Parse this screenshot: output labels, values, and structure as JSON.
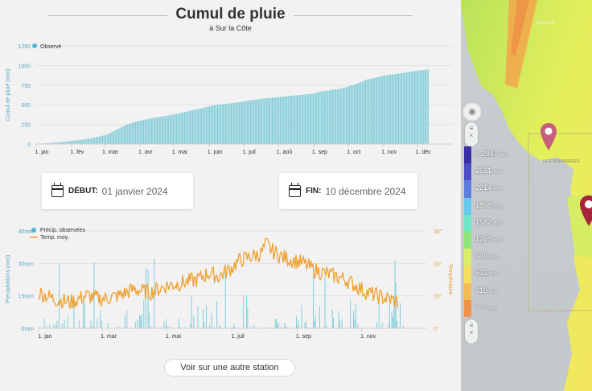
{
  "header": {
    "title": "Cumul de pluie",
    "subtitle": "à Sur la Côte"
  },
  "cumul_chart": {
    "type": "bar",
    "legend": "Observé",
    "ylabel": "Cumul de pluie (mm)",
    "yticks": [
      "0",
      "250",
      "500",
      "750",
      "1000",
      "1250"
    ],
    "xticks": [
      "1. jan",
      "1. fév",
      "1. mar",
      "1. avr",
      "1. mai",
      "1. juin",
      "1. juil",
      "1. aoû",
      "1. sep",
      "1. oct",
      "1. nov",
      "1. déc"
    ],
    "ylim": [
      0,
      1250
    ],
    "color": "#7ccbd8",
    "anchors_day_value": [
      [
        0,
        0
      ],
      [
        10,
        10
      ],
      [
        25,
        30
      ],
      [
        40,
        55
      ],
      [
        50,
        80
      ],
      [
        62,
        120
      ],
      [
        70,
        180
      ],
      [
        78,
        240
      ],
      [
        86,
        280
      ],
      [
        98,
        320
      ],
      [
        110,
        350
      ],
      [
        122,
        380
      ],
      [
        134,
        420
      ],
      [
        146,
        460
      ],
      [
        158,
        500
      ],
      [
        166,
        510
      ],
      [
        176,
        530
      ],
      [
        190,
        560
      ],
      [
        200,
        580
      ],
      [
        214,
        600
      ],
      [
        228,
        620
      ],
      [
        242,
        640
      ],
      [
        250,
        670
      ],
      [
        266,
        700
      ],
      [
        280,
        760
      ],
      [
        290,
        820
      ],
      [
        305,
        870
      ],
      [
        320,
        900
      ],
      [
        332,
        930
      ],
      [
        344,
        950
      ]
    ]
  },
  "period": {
    "start_label": "DÉBUT:",
    "start_value": "01 janvier 2024",
    "end_label": "FIN:",
    "end_value": "10 décembre 2024"
  },
  "daily_chart": {
    "type": "bar+line",
    "legend_precip": "Précip. observées",
    "legend_temp": "Temp. moy.",
    "ylabel_left": "Precipitations (mm)",
    "ylabel_right": "Température",
    "yticks_left": [
      "0mm",
      "15mm",
      "30mm",
      "45mm"
    ],
    "yticks_right": [
      "0°",
      "10°",
      "20°",
      "30°"
    ],
    "xticks": [
      "1. jan",
      "1. mar",
      "1. mai",
      "1. juil",
      "1. sep",
      "1. nov"
    ],
    "precip_color": "#7ccbd8",
    "temp_color": "#f0a030",
    "temp_anchors": [
      [
        0,
        11
      ],
      [
        15,
        9
      ],
      [
        30,
        8
      ],
      [
        45,
        10
      ],
      [
        60,
        9
      ],
      [
        75,
        10
      ],
      [
        90,
        12
      ],
      [
        105,
        11
      ],
      [
        120,
        13
      ],
      [
        135,
        14
      ],
      [
        150,
        15
      ],
      [
        160,
        17
      ],
      [
        170,
        16
      ],
      [
        180,
        18
      ],
      [
        190,
        21
      ],
      [
        200,
        22
      ],
      [
        210,
        23
      ],
      [
        215,
        26
      ],
      [
        220,
        24
      ],
      [
        230,
        22
      ],
      [
        240,
        21
      ],
      [
        250,
        20
      ],
      [
        260,
        18
      ],
      [
        270,
        17
      ],
      [
        280,
        16
      ],
      [
        290,
        15
      ],
      [
        300,
        13
      ],
      [
        310,
        11
      ],
      [
        320,
        10
      ],
      [
        330,
        9
      ],
      [
        340,
        8
      ]
    ]
  },
  "footer": {
    "button": "Voir sur une autre station"
  },
  "map": {
    "city": "NANTES",
    "place": "LES SORINIÈRES",
    "legend": [
      {
        "value": "> 2847",
        "unit": "mm",
        "color": "#3b2fa4"
      },
      {
        "value": "2531",
        "unit": "mm",
        "color": "#4c4fc3"
      },
      {
        "value": "2214",
        "unit": "mm",
        "color": "#5d7ee0"
      },
      {
        "value": "1898",
        "unit": "mm",
        "color": "#66c8ec"
      },
      {
        "value": "1582",
        "unit": "mm",
        "color": "#6fe5c8"
      },
      {
        "value": "1265",
        "unit": "mm",
        "color": "#8fe57a"
      },
      {
        "value": "949",
        "unit": "mm",
        "color": "#d7ef6a"
      },
      {
        "value": "632",
        "unit": "mm",
        "color": "#f4e05e"
      },
      {
        "value": "316",
        "unit": "mm",
        "color": "#f5bb55"
      },
      {
        "value": "> 0",
        "unit": "mm",
        "color": "#f0924a"
      }
    ]
  }
}
